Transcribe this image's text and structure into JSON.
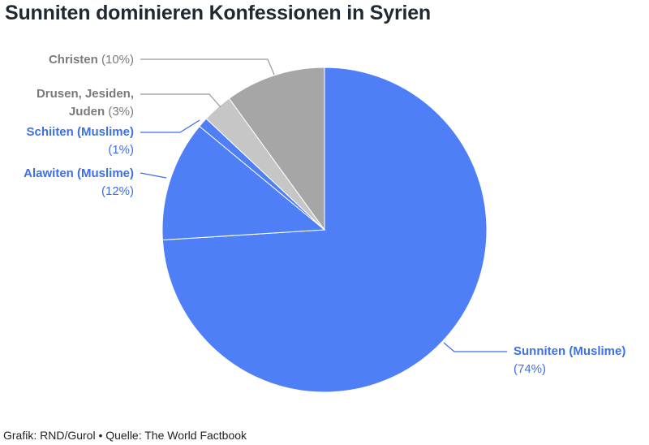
{
  "title": "Sunniten dominieren Konfessionen in Syrien",
  "footer": "Grafik: RND/Gurol • Quelle: The World Factbook",
  "chart_data": {
    "type": "pie",
    "slices": [
      {
        "label": "Sunniten (Muslime)",
        "value": 74,
        "value_text": "(74%)",
        "color": "#4f7ff7",
        "text_color": "#3d6fe6"
      },
      {
        "label": "Alawiten (Muslime)",
        "value": 12,
        "value_text": "(12%)",
        "color": "#4f7ff7",
        "text_color": "#3d6fe6"
      },
      {
        "label": "Schiiten (Muslime)",
        "value": 1,
        "value_text": "(1%)",
        "color": "#4f7ff7",
        "text_color": "#3d6fe6"
      },
      {
        "label_lines": [
          "Drusen, Jesiden,",
          "Juden"
        ],
        "value": 3,
        "value_text": "(3%)",
        "color": "#c6c6c6",
        "text_color": "#7a7a7a"
      },
      {
        "label": "Christen",
        "value": 10,
        "value_text": "(10%)",
        "color": "#a6a6a6",
        "text_color": "#7a7a7a"
      }
    ]
  }
}
